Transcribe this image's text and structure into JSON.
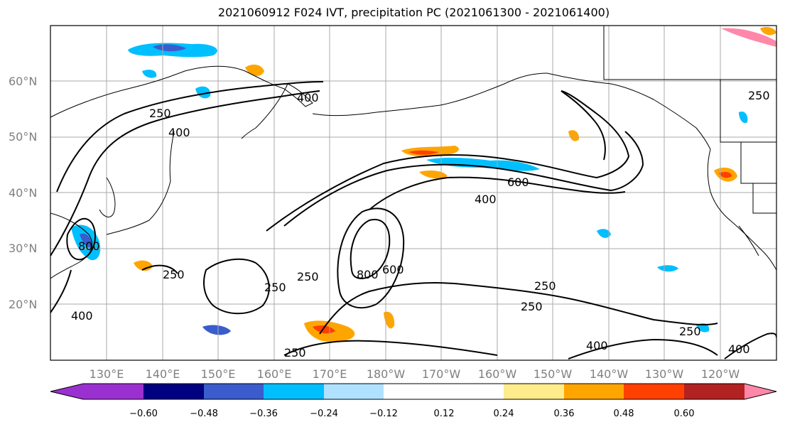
{
  "title": "2021060912 F024 IVT, precipitation PC (2021061300 - 2021061400)",
  "map": {
    "lat_labels": [
      "60°N",
      "50°N",
      "40°N",
      "30°N",
      "20°N"
    ],
    "lon_labels": [
      "130°E",
      "140°E",
      "150°E",
      "160°E",
      "170°E",
      "180°W",
      "170°W",
      "160°W",
      "150°W",
      "140°W",
      "130°W",
      "120°W"
    ],
    "contour_labels": [
      "400",
      "400",
      "600",
      "400",
      "250",
      "250",
      "250",
      "800",
      "600",
      "250",
      "250",
      "400",
      "250",
      "250",
      "400",
      "400",
      "250",
      "250",
      "800"
    ]
  },
  "colorbar": {
    "ticks": [
      "−0.60",
      "−0.48",
      "−0.36",
      "−0.24",
      "−0.12",
      "0.12",
      "0.24",
      "0.36",
      "0.48",
      "0.60"
    ],
    "colors": [
      "#9b30d0",
      "#000080",
      "#3a5ccc",
      "#00bfff",
      "#b0e2ff",
      "#ffffff",
      "#ffec8b",
      "#ffa500",
      "#ff4000",
      "#b22222",
      "#ff88aa"
    ]
  }
}
